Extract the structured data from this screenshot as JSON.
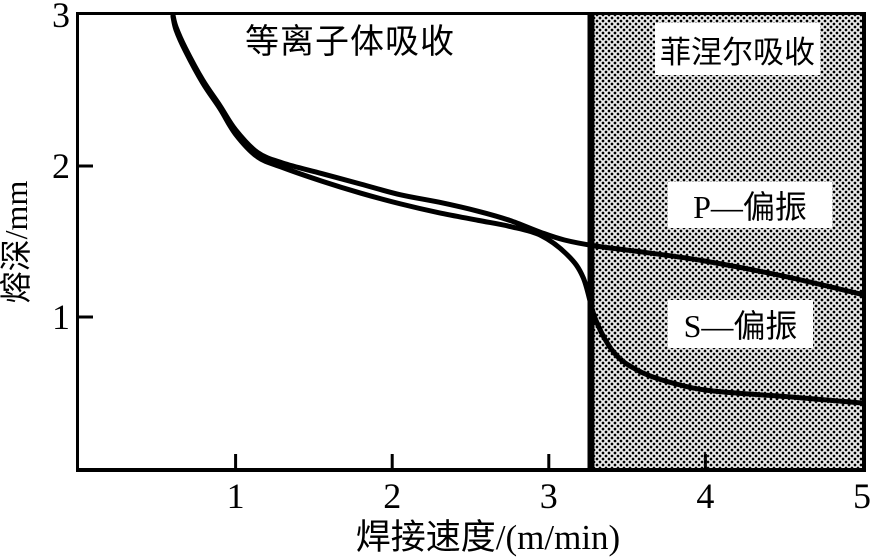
{
  "regions": {
    "plasma_label": "等离子体吸收",
    "fresnel_label": "菲涅尔吸收"
  },
  "series_labels": {
    "p": "P—偏振",
    "s": "S—偏振"
  },
  "axes": {
    "x_label": "焊接速度/(m/min)",
    "y_label": "熔深/mm"
  },
  "colors": {
    "ink": "#000000",
    "stipple_bg": "#ececec",
    "stipple_dot": "#000000"
  },
  "chart_data": {
    "type": "line",
    "title": "",
    "xlabel": "焊接速度/(m/min)",
    "ylabel": "熔深/mm",
    "xlim": [
      0,
      5
    ],
    "ylim": [
      0,
      3
    ],
    "grid": false,
    "x_tick_labels": [
      "1",
      "2",
      "3",
      "4",
      "5"
    ],
    "x_tick_values": [
      1,
      2,
      3,
      4,
      5
    ],
    "y_tick_labels": [
      "3",
      "2",
      "1"
    ],
    "y_tick_values": [
      3,
      2,
      1
    ],
    "x_tick_marks": [
      1,
      2,
      3,
      4
    ],
    "y_tick_marks": [
      2,
      1
    ],
    "region_boundary_x": 3.27,
    "regions": [
      {
        "label": "等离子体吸收",
        "x_range": [
          0,
          3.27
        ],
        "fill": "white"
      },
      {
        "label": "菲涅尔吸收",
        "x_range": [
          3.27,
          5
        ],
        "fill": "stippled-gray"
      }
    ],
    "series": [
      {
        "name": "P—偏振",
        "points": [
          [
            0.6,
            3.0
          ],
          [
            0.62,
            2.92
          ],
          [
            0.68,
            2.78
          ],
          [
            0.79,
            2.57
          ],
          [
            0.9,
            2.4
          ],
          [
            1.0,
            2.24
          ],
          [
            1.14,
            2.09
          ],
          [
            1.3,
            2.02
          ],
          [
            1.55,
            1.95
          ],
          [
            1.8,
            1.88
          ],
          [
            2.05,
            1.81
          ],
          [
            2.3,
            1.76
          ],
          [
            2.55,
            1.7
          ],
          [
            2.75,
            1.64
          ],
          [
            2.95,
            1.56
          ],
          [
            3.1,
            1.51
          ],
          [
            3.3,
            1.47
          ],
          [
            3.6,
            1.43
          ],
          [
            4.0,
            1.37
          ],
          [
            4.5,
            1.27
          ],
          [
            5.0,
            1.15
          ]
        ]
      },
      {
        "name": "S—偏振",
        "points": [
          [
            0.6,
            2.99
          ],
          [
            0.62,
            2.9
          ],
          [
            0.68,
            2.76
          ],
          [
            0.79,
            2.55
          ],
          [
            0.9,
            2.38
          ],
          [
            1.0,
            2.21
          ],
          [
            1.14,
            2.06
          ],
          [
            1.3,
            1.99
          ],
          [
            1.55,
            1.9
          ],
          [
            1.8,
            1.82
          ],
          [
            2.05,
            1.75
          ],
          [
            2.3,
            1.69
          ],
          [
            2.55,
            1.64
          ],
          [
            2.75,
            1.6
          ],
          [
            2.95,
            1.54
          ],
          [
            3.12,
            1.41
          ],
          [
            3.22,
            1.26
          ],
          [
            3.3,
            0.98
          ],
          [
            3.42,
            0.76
          ],
          [
            3.58,
            0.64
          ],
          [
            3.8,
            0.56
          ],
          [
            4.05,
            0.51
          ],
          [
            4.55,
            0.47
          ],
          [
            5.0,
            0.43
          ]
        ]
      }
    ]
  }
}
